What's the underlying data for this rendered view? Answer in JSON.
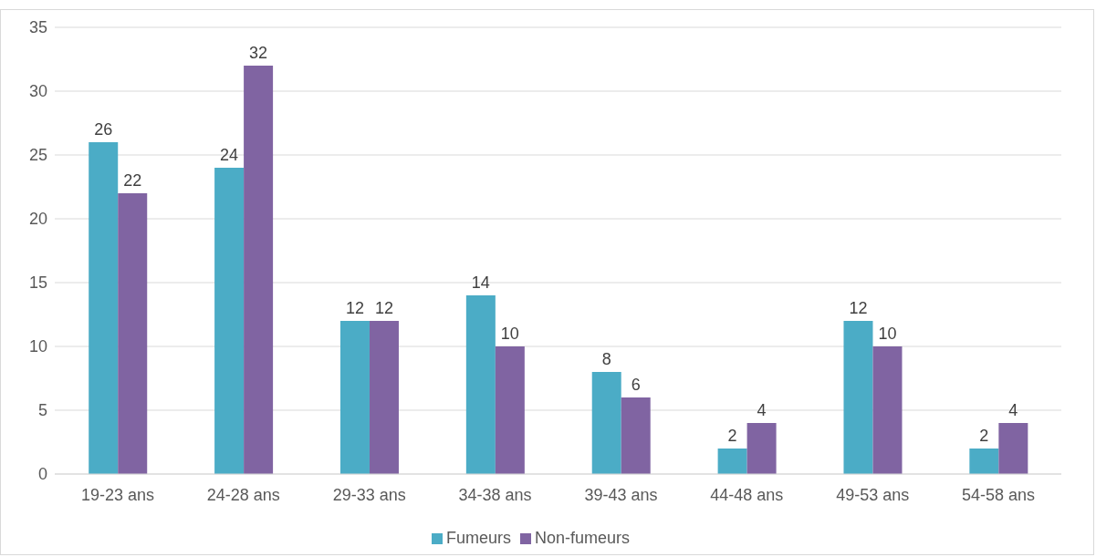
{
  "chart_data": {
    "type": "bar",
    "categories": [
      "19-23 ans",
      "24-28 ans",
      "29-33 ans",
      "34-38 ans",
      "39-43 ans",
      "44-48 ans",
      "49-53 ans",
      "54-58 ans"
    ],
    "series": [
      {
        "name": "Fumeurs",
        "color": "#4bacc6",
        "values": [
          26,
          24,
          12,
          14,
          8,
          2,
          12,
          2
        ]
      },
      {
        "name": "Non-fumeurs",
        "color": "#8064a2",
        "values": [
          22,
          32,
          12,
          10,
          6,
          4,
          10,
          4
        ]
      }
    ],
    "ylim": [
      0,
      35
    ],
    "yticks": [
      0,
      5,
      10,
      15,
      20,
      25,
      30,
      35
    ],
    "grid": "y",
    "legend": "bottom",
    "data_labels": true
  }
}
